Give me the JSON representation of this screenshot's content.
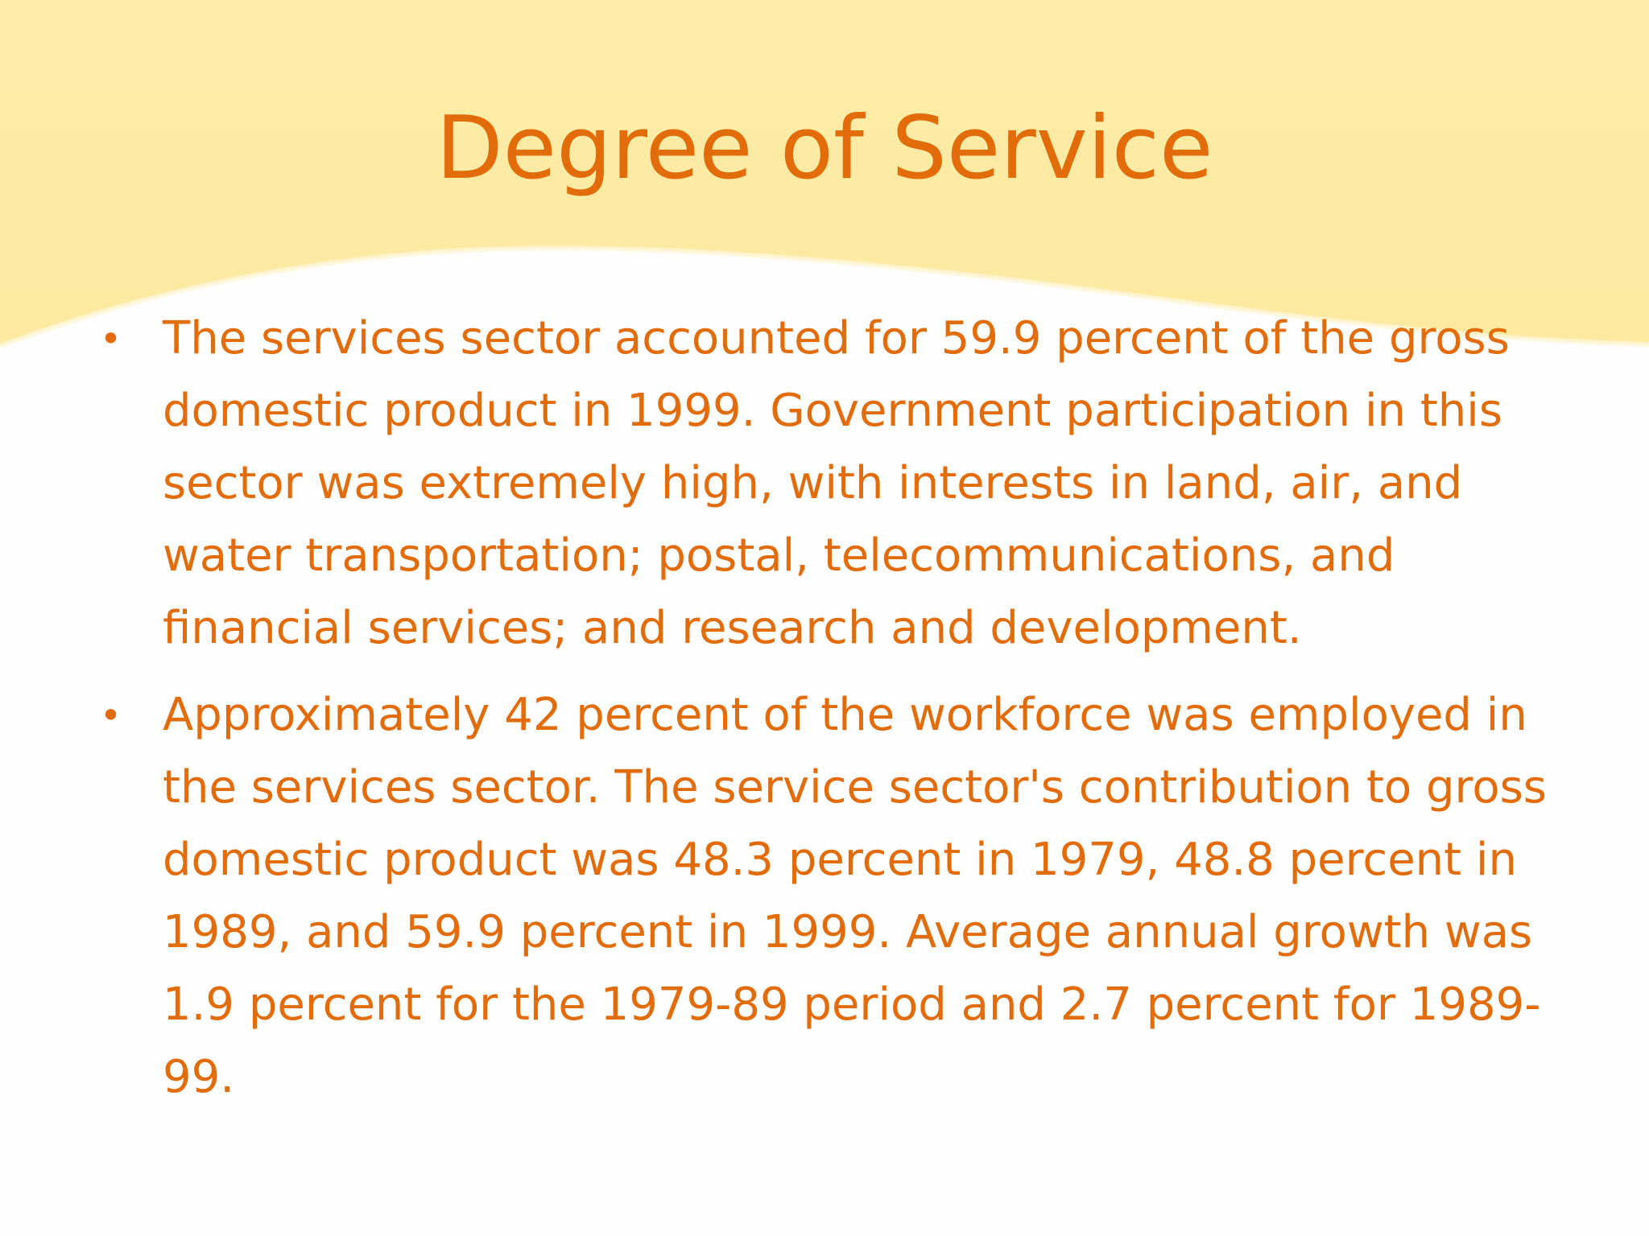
{
  "slide": {
    "title": "Degree of Service",
    "bullet_symbol": "•",
    "bullets": [
      "The services sector accounted for 59.9 percent of the gross domestic product in 1999. Government participation in this sector was extremely high, with interests in land, air, and water transportation; postal, telecommunications, and financial services; and research and development.",
      "Approximately 42 percent of the workforce was employed in the services sector. The service sector's contribution to gross domestic product was 48.3 percent in 1979, 48.8 percent in 1989, and 59.9 percent in 1999. Average annual growth was 1.9 percent for the 1979-89 period and 2.7 percent for 1989-99."
    ]
  },
  "colors": {
    "text": "#e36c0a",
    "header_band": "#fdeca6",
    "background": "#fefefe"
  }
}
